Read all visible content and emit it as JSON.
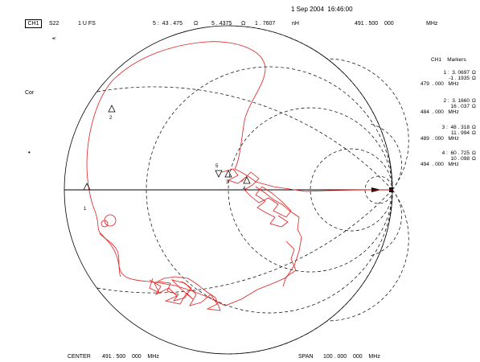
{
  "header": {
    "datetime": "1 Sep 2004  16:46:00",
    "channel": "CH1",
    "param": "S22",
    "scale": "1 U FS",
    "marker_readout": {
      "index": "5 :  43 . 475",
      "real_unit": "Ω",
      "imag": "5 . 4375",
      "imag_unit": "Ω",
      "reactance": "1 . 7607",
      "reactance_unit": "nH",
      "freq": "491 . 500    000",
      "freq_unit": "MHz"
    }
  },
  "left_annotations": {
    "symbol": "•ᵖ",
    "cor": "Cor",
    "dot": "•"
  },
  "footer": {
    "center_label": "CENTER",
    "center_value": "491 . 500    000    MHz",
    "span_label": "SPAN",
    "span_value": "100 . 000    000    MHz"
  },
  "markers_panel": {
    "title": "CH1    Markers",
    "entries": [
      {
        "line1": "1 :  3. 0697",
        "u1": "Ω",
        "line2": "-1 . 1935",
        "u2": "Ω",
        "freq": "479  . 000   MHz"
      },
      {
        "line1": "2 :  3. 1660",
        "u1": "Ω",
        "line2": "16 . 037",
        "u2": "Ω",
        "freq": "484  . 000   MHz"
      },
      {
        "line1": "3 :  48 . 318",
        "u1": "Ω",
        "line2": "11 . 994",
        "u2": "Ω",
        "freq": "489  . 000   MHz"
      },
      {
        "line1": "4 :  60 . 725",
        "u1": "Ω",
        "line2": "10 . 098",
        "u2": "Ω",
        "freq": "494  . 000   MHz"
      }
    ]
  },
  "marker_labels": [
    "1",
    "2",
    "3",
    "4",
    "5"
  ],
  "colors": {
    "trace": "#e02020",
    "grid": "#000000"
  }
}
